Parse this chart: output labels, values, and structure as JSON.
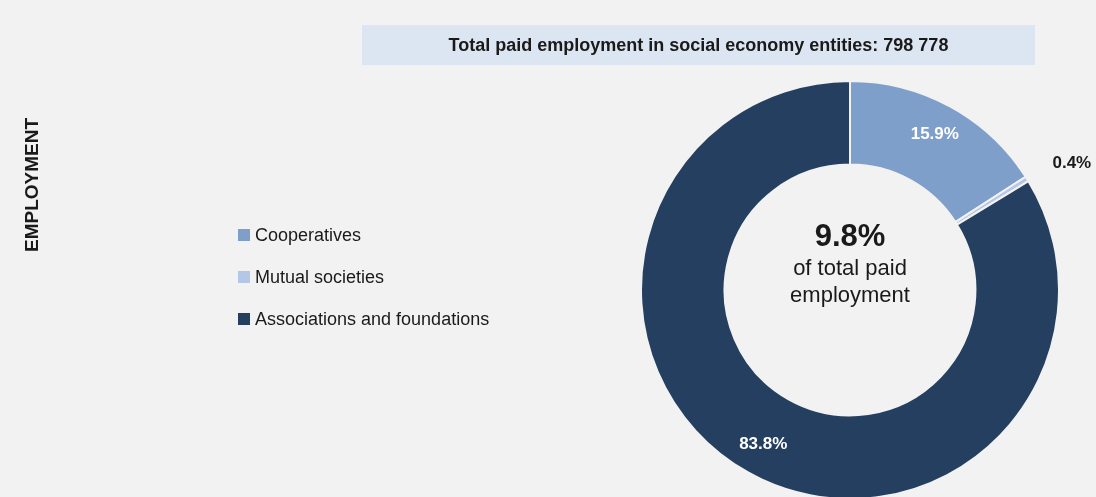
{
  "chart_data": {
    "type": "donut",
    "title": "Total paid employment in social economy entities: 798 778",
    "categories": [
      "Cooperatives",
      "Mutual societies",
      "Associations and foundations"
    ],
    "values": [
      15.9,
      0.4,
      83.8
    ],
    "colors": [
      "#7f9fcb",
      "#b4c7e7",
      "#243f60"
    ],
    "value_labels": [
      "15.9%",
      "0.4%",
      "83.8%"
    ],
    "legend": "left",
    "annotations": [
      "EMPLOYMENT",
      "9.8%",
      "of total paid employment"
    ]
  }
}
